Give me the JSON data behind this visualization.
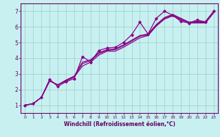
{
  "xlabel": "Windchill (Refroidissement éolien,°C)",
  "bg_color": "#c8f0f0",
  "line_color": "#880088",
  "xlim": [
    -0.5,
    23.5
  ],
  "ylim": [
    0.5,
    7.5
  ],
  "xticks": [
    0,
    1,
    2,
    3,
    4,
    5,
    6,
    7,
    8,
    9,
    10,
    11,
    12,
    13,
    14,
    15,
    16,
    17,
    18,
    19,
    20,
    21,
    22,
    23
  ],
  "yticks": [
    1,
    2,
    3,
    4,
    5,
    6,
    7
  ],
  "grid_color": "#99cccc",
  "lines": [
    {
      "x": [
        0,
        1,
        2,
        3,
        4,
        5,
        6,
        7,
        8,
        9,
        10,
        11,
        12,
        13,
        14,
        15,
        16,
        17,
        18,
        19,
        20,
        21,
        22,
        23
      ],
      "y": [
        1.0,
        1.1,
        1.5,
        2.65,
        2.2,
        2.5,
        2.7,
        4.1,
        3.75,
        4.5,
        4.65,
        4.7,
        5.0,
        5.5,
        6.3,
        5.55,
        6.55,
        7.0,
        6.75,
        6.35,
        6.25,
        6.45,
        6.3,
        7.0
      ],
      "marker": true
    },
    {
      "x": [
        0,
        1,
        2,
        3,
        4,
        5,
        6,
        7,
        8,
        9,
        10,
        11,
        12,
        13,
        14,
        15,
        16,
        17,
        18,
        19,
        20,
        21,
        22,
        23
      ],
      "y": [
        1.0,
        1.1,
        1.5,
        2.55,
        2.3,
        2.6,
        2.85,
        3.75,
        3.9,
        4.35,
        4.55,
        4.6,
        4.85,
        5.15,
        5.45,
        5.55,
        6.15,
        6.6,
        6.8,
        6.55,
        6.3,
        6.35,
        6.35,
        7.0
      ],
      "marker": false
    },
    {
      "x": [
        0,
        1,
        2,
        3,
        4,
        5,
        6,
        7,
        8,
        9,
        10,
        11,
        12,
        13,
        14,
        15,
        16,
        17,
        18,
        19,
        20,
        21,
        22,
        23
      ],
      "y": [
        1.0,
        1.1,
        1.5,
        2.55,
        2.3,
        2.6,
        2.85,
        3.65,
        3.85,
        4.3,
        4.5,
        4.55,
        4.8,
        5.1,
        5.4,
        5.5,
        6.1,
        6.55,
        6.75,
        6.5,
        6.3,
        6.3,
        6.3,
        6.95
      ],
      "marker": false
    },
    {
      "x": [
        0,
        1,
        2,
        3,
        4,
        5,
        6,
        7,
        8,
        9,
        10,
        11,
        12,
        13,
        14,
        15,
        16,
        17,
        18,
        19,
        20,
        21,
        22,
        23
      ],
      "y": [
        1.0,
        1.1,
        1.5,
        2.55,
        2.3,
        2.55,
        2.8,
        3.5,
        3.75,
        4.2,
        4.45,
        4.45,
        4.7,
        5.0,
        5.3,
        5.45,
        6.05,
        6.5,
        6.7,
        6.45,
        6.25,
        6.25,
        6.25,
        6.9
      ],
      "marker": false
    }
  ]
}
